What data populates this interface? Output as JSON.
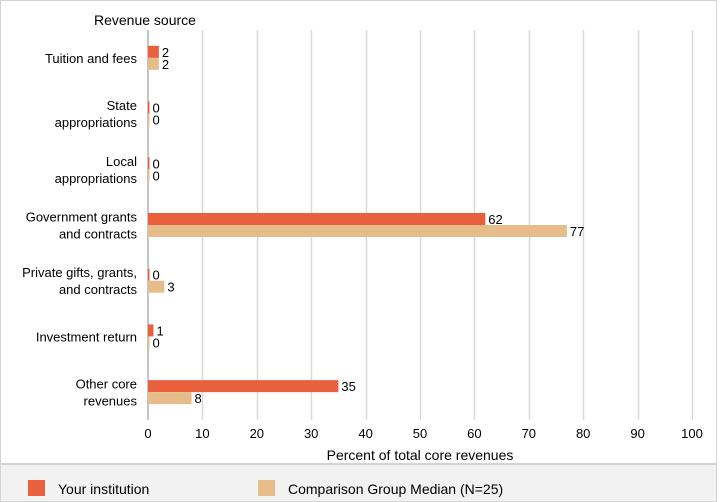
{
  "chart_data": {
    "type": "bar",
    "orientation": "horizontal",
    "title": "Revenue source",
    "xlabel": "Percent of total core revenues",
    "ylabel": "",
    "xlim": [
      0,
      100
    ],
    "xticks": [
      0,
      10,
      20,
      30,
      40,
      50,
      60,
      70,
      80,
      90,
      100
    ],
    "grid": true,
    "legend_position": "bottom",
    "categories": [
      [
        "Tuition and fees"
      ],
      [
        "State",
        "appropriations"
      ],
      [
        "Local",
        "appropriations"
      ],
      [
        "Government grants",
        "and contracts"
      ],
      [
        "Private gifts, grants,",
        "and contracts"
      ],
      [
        "Investment return"
      ],
      [
        "Other core",
        "revenues"
      ]
    ],
    "series": [
      {
        "name": "Your institution",
        "color": "#e8613c",
        "values": [
          2,
          0,
          0,
          62,
          0,
          1,
          35
        ]
      },
      {
        "name": "Comparison Group Median (N=25)",
        "color": "#e6bd8a",
        "values": [
          2,
          0,
          0,
          77,
          3,
          0,
          8
        ]
      }
    ]
  }
}
